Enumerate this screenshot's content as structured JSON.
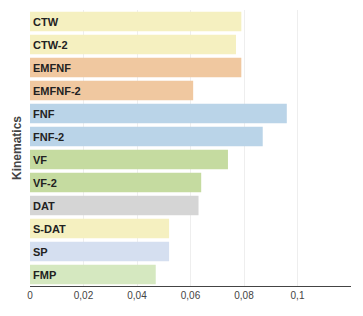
{
  "chart_data": {
    "type": "bar",
    "orientation": "horizontal",
    "categories": [
      "CTW",
      "CTW-2",
      "EMFNF",
      "EMFNF-2",
      "FNF",
      "FNF-2",
      "VF",
      "VF-2",
      "DAT",
      "S-DAT",
      "SP",
      "FMP"
    ],
    "values": [
      0.079,
      0.077,
      0.079,
      0.061,
      0.096,
      0.087,
      0.074,
      0.064,
      0.063,
      0.052,
      0.052,
      0.047
    ],
    "colors": [
      "#f5f0c0",
      "#f5f0c0",
      "#f0c8a0",
      "#f0c8a0",
      "#bad4e8",
      "#bad4e8",
      "#c5dba0",
      "#c5dba0",
      "#d5d5d5",
      "#f5f0c0",
      "#d5dff0",
      "#d5e8c0"
    ],
    "ylabel": "Kinematics",
    "xlim": [
      0,
      0.12
    ],
    "xticks": [
      0,
      {
        "value": 0.02,
        "label": "0,02"
      },
      {
        "value": 0.04,
        "label": "0,04"
      },
      {
        "value": 0.06,
        "label": "0,06"
      },
      {
        "value": 0.08,
        "label": "0,08"
      },
      {
        "value": 0.1,
        "label": "0,1"
      }
    ],
    "grid": true,
    "tick_labels": "x"
  }
}
